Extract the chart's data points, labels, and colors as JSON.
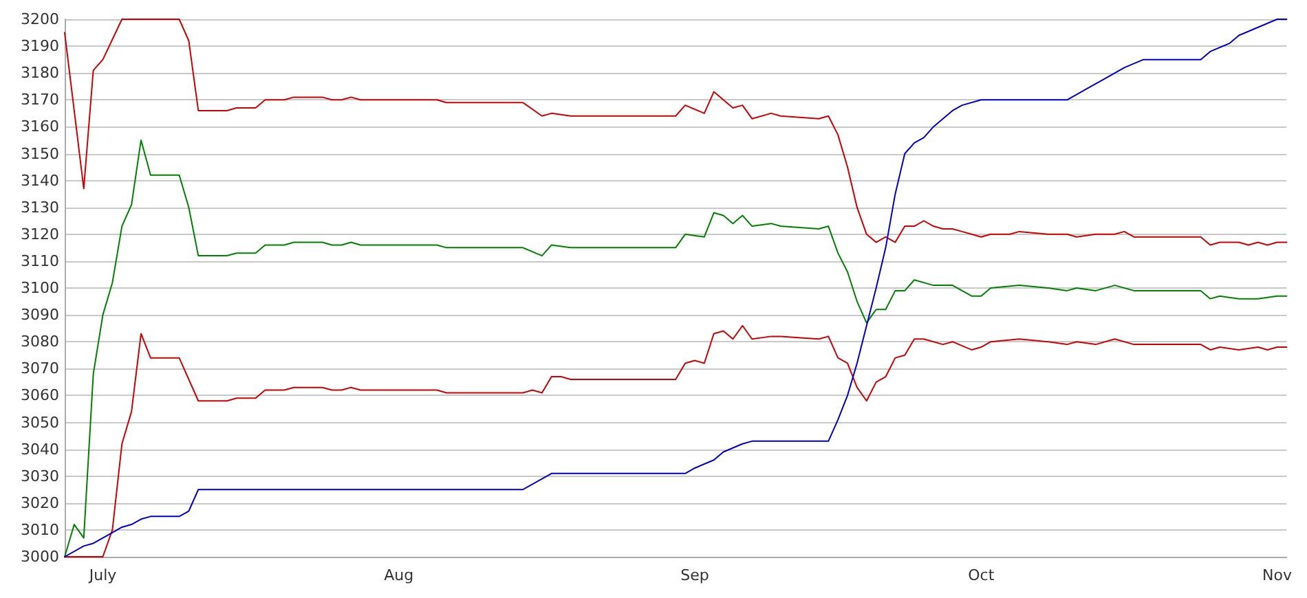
{
  "chart_data": {
    "type": "line",
    "grid": "y",
    "marker": "none",
    "line_style": "solid",
    "xlim": [
      "--06-27",
      "--11-02"
    ],
    "xticks": [
      {
        "value": "--07-01",
        "label": "July"
      },
      {
        "value": "--08-01",
        "label": "Aug"
      },
      {
        "value": "--09-01",
        "label": "Sep"
      },
      {
        "value": "--10-01",
        "label": "Oct"
      },
      {
        "value": "--11-01",
        "label": "Nov"
      }
    ],
    "ylim": [
      3000,
      3200
    ],
    "yticks": [
      3000,
      3010,
      3020,
      3030,
      3040,
      3050,
      3060,
      3070,
      3080,
      3090,
      3100,
      3110,
      3120,
      3130,
      3140,
      3150,
      3160,
      3170,
      3180,
      3190,
      3200
    ],
    "series": [
      {
        "color": "#cc0000",
        "x": [
          "--06-27",
          "--06-29",
          "--06-30",
          "--07-01",
          "--07-03",
          "--07-09",
          "--07-10",
          "--07-11",
          "--07-14",
          "--07-15",
          "--07-17",
          "--07-18",
          "--07-20",
          "--07-21",
          "--07-24",
          "--07-25",
          "--07-26",
          "--07-27",
          "--07-28",
          "--08-05",
          "--08-06",
          "--08-14",
          "--08-16",
          "--08-17",
          "--08-19",
          "--08-30",
          "--08-31",
          "--09-02",
          "--09-03",
          "--09-05",
          "--09-06",
          "--09-07",
          "--09-09",
          "--09-10",
          "--09-14",
          "--09-15",
          "--09-16",
          "--09-17",
          "--09-18",
          "--09-19",
          "--09-20",
          "--09-21",
          "--09-22",
          "--09-23",
          "--09-24",
          "--09-25",
          "--09-26",
          "--09-27",
          "--09-28",
          "--09-29",
          "--09-30",
          "--10-01",
          "--10-02",
          "--10-04",
          "--10-05",
          "--10-08",
          "--10-10",
          "--10-11",
          "--10-13",
          "--10-15",
          "--10-16",
          "--10-17",
          "--10-24",
          "--10-25",
          "--10-26",
          "--10-28",
          "--10-29",
          "--10-30",
          "--10-31",
          "--11-01",
          "--11-02"
        ],
        "values": [
          3195,
          3137,
          3181,
          3185,
          3200,
          3200,
          3192,
          3166,
          3166,
          3167,
          3167,
          3170,
          3170,
          3171,
          3171,
          3170,
          3170,
          3171,
          3170,
          3170,
          3169,
          3169,
          3164,
          3165,
          3164,
          3164,
          3168,
          3165,
          3173,
          3167,
          3168,
          3163,
          3165,
          3164,
          3163,
          3164,
          3157,
          3145,
          3130,
          3120,
          3117,
          3119,
          3117,
          3123,
          3123,
          3125,
          3123,
          3122,
          3122,
          3121,
          3120,
          3119,
          3120,
          3120,
          3121,
          3120,
          3120,
          3119,
          3120,
          3120,
          3121,
          3119,
          3119,
          3116,
          3117,
          3117,
          3116,
          3117,
          3116,
          3117,
          3117
        ]
      },
      {
        "color": "#008000",
        "x": [
          "--06-27",
          "--06-28",
          "--06-29",
          "--06-30",
          "--07-01",
          "--07-02",
          "--07-03",
          "--07-04",
          "--07-05",
          "--07-06",
          "--07-09",
          "--07-10",
          "--07-11",
          "--07-14",
          "--07-15",
          "--07-17",
          "--07-18",
          "--07-20",
          "--07-21",
          "--07-24",
          "--07-25",
          "--07-26",
          "--07-27",
          "--07-28",
          "--08-05",
          "--08-06",
          "--08-14",
          "--08-16",
          "--08-17",
          "--08-19",
          "--08-30",
          "--08-31",
          "--09-02",
          "--09-03",
          "--09-04",
          "--09-05",
          "--09-06",
          "--09-07",
          "--09-09",
          "--09-10",
          "--09-14",
          "--09-15",
          "--09-16",
          "--09-17",
          "--09-18",
          "--09-19",
          "--09-20",
          "--09-21",
          "--09-22",
          "--09-23",
          "--09-24",
          "--09-26",
          "--09-28",
          "--09-29",
          "--09-30",
          "--10-01",
          "--10-02",
          "--10-05",
          "--10-08",
          "--10-10",
          "--10-11",
          "--10-13",
          "--10-15",
          "--10-17",
          "--10-24",
          "--10-25",
          "--10-26",
          "--10-28",
          "--10-30",
          "--11-01",
          "--11-02"
        ],
        "values": [
          3000,
          3012,
          3007,
          3068,
          3090,
          3102,
          3123,
          3131,
          3155,
          3142,
          3142,
          3130,
          3112,
          3112,
          3113,
          3113,
          3116,
          3116,
          3117,
          3117,
          3116,
          3116,
          3117,
          3116,
          3116,
          3115,
          3115,
          3112,
          3116,
          3115,
          3115,
          3120,
          3119,
          3128,
          3127,
          3124,
          3127,
          3123,
          3124,
          3123,
          3122,
          3123,
          3113,
          3106,
          3095,
          3087,
          3092,
          3092,
          3099,
          3099,
          3103,
          3101,
          3101,
          3099,
          3097,
          3097,
          3100,
          3101,
          3100,
          3099,
          3100,
          3099,
          3101,
          3099,
          3099,
          3096,
          3097,
          3096,
          3096,
          3097,
          3097
        ]
      },
      {
        "color": "#cc0000",
        "x": [
          "--06-27",
          "--07-01",
          "--07-02",
          "--07-03",
          "--07-04",
          "--07-05",
          "--07-06",
          "--07-09",
          "--07-11",
          "--07-14",
          "--07-15",
          "--07-17",
          "--07-18",
          "--07-20",
          "--07-21",
          "--07-24",
          "--07-25",
          "--07-26",
          "--07-27",
          "--07-28",
          "--08-05",
          "--08-06",
          "--08-14",
          "--08-15",
          "--08-16",
          "--08-17",
          "--08-18",
          "--08-19",
          "--08-30",
          "--08-31",
          "--09-01",
          "--09-02",
          "--09-03",
          "--09-04",
          "--09-05",
          "--09-06",
          "--09-07",
          "--09-09",
          "--09-10",
          "--09-14",
          "--09-15",
          "--09-16",
          "--09-17",
          "--09-18",
          "--09-19",
          "--09-20",
          "--09-21",
          "--09-22",
          "--09-23",
          "--09-24",
          "--09-25",
          "--09-27",
          "--09-28",
          "--09-30",
          "--10-01",
          "--10-02",
          "--10-05",
          "--10-08",
          "--10-10",
          "--10-11",
          "--10-13",
          "--10-15",
          "--10-17",
          "--10-24",
          "--10-25",
          "--10-26",
          "--10-28",
          "--10-30",
          "--10-31",
          "--11-01",
          "--11-02"
        ],
        "values": [
          3000,
          3000,
          3010,
          3042,
          3054,
          3083,
          3074,
          3074,
          3058,
          3058,
          3059,
          3059,
          3062,
          3062,
          3063,
          3063,
          3062,
          3062,
          3063,
          3062,
          3062,
          3061,
          3061,
          3062,
          3061,
          3067,
          3067,
          3066,
          3066,
          3072,
          3073,
          3072,
          3083,
          3084,
          3081,
          3086,
          3081,
          3082,
          3082,
          3081,
          3082,
          3074,
          3072,
          3063,
          3058,
          3065,
          3067,
          3074,
          3075,
          3081,
          3081,
          3079,
          3080,
          3077,
          3078,
          3080,
          3081,
          3080,
          3079,
          3080,
          3079,
          3081,
          3079,
          3079,
          3077,
          3078,
          3077,
          3078,
          3077,
          3078,
          3078
        ]
      },
      {
        "color": "#0000cc",
        "x": [
          "--06-27",
          "--06-29",
          "--06-30",
          "--07-01",
          "--07-02",
          "--07-03",
          "--07-04",
          "--07-05",
          "--07-06",
          "--07-09",
          "--07-10",
          "--07-11",
          "--08-14",
          "--08-17",
          "--08-31",
          "--09-01",
          "--09-03",
          "--09-04",
          "--09-06",
          "--09-07",
          "--09-15",
          "--09-16",
          "--09-17",
          "--09-18",
          "--09-19",
          "--09-20",
          "--09-21",
          "--09-22",
          "--09-23",
          "--09-24",
          "--09-25",
          "--09-26",
          "--09-27",
          "--09-28",
          "--09-29",
          "--10-01",
          "--10-10",
          "--10-12",
          "--10-14",
          "--10-16",
          "--10-18",
          "--10-24",
          "--10-25",
          "--10-27",
          "--10-28",
          "--10-30",
          "--11-01",
          "--11-02"
        ],
        "values": [
          3000,
          3004,
          3005,
          3007,
          3009,
          3011,
          3012,
          3014,
          3015,
          3015,
          3017,
          3025,
          3025,
          3031,
          3031,
          3033,
          3036,
          3039,
          3042,
          3043,
          3043,
          3051,
          3060,
          3072,
          3086,
          3100,
          3115,
          3135,
          3150,
          3154,
          3156,
          3160,
          3163,
          3166,
          3168,
          3170,
          3170,
          3174,
          3178,
          3182,
          3185,
          3185,
          3188,
          3191,
          3194,
          3197,
          3200,
          3200
        ]
      }
    ]
  }
}
